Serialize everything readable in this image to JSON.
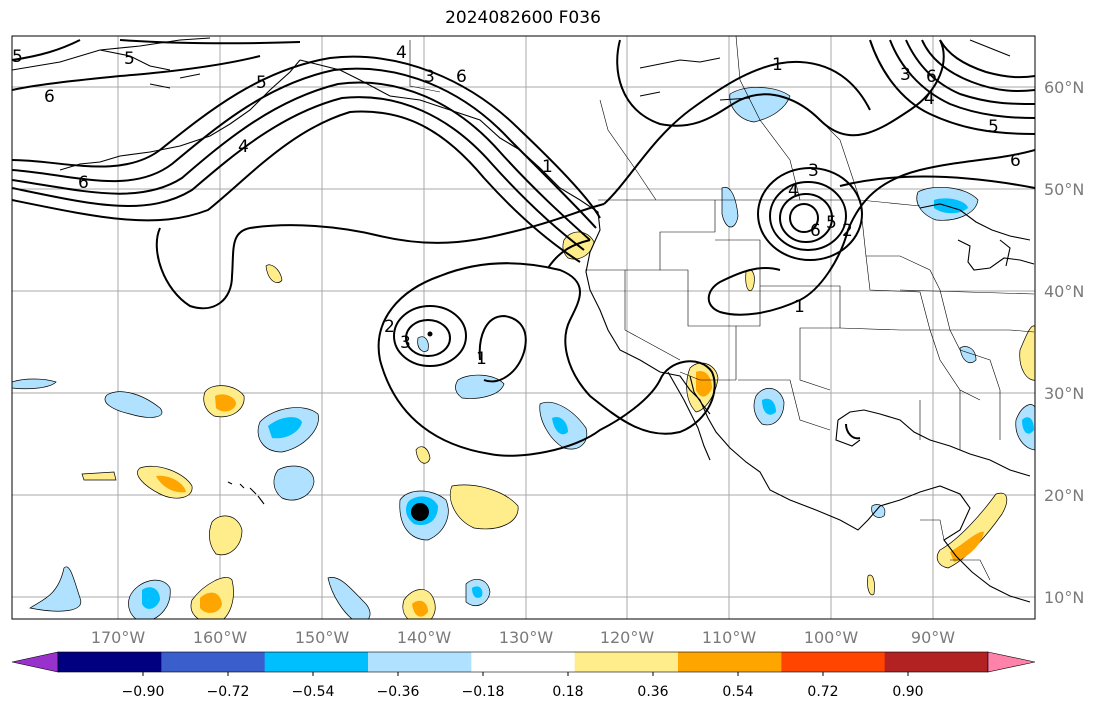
{
  "title": "2024082600 F036",
  "lon_labels": [
    "170°W",
    "160°W",
    "150°W",
    "140°W",
    "130°W",
    "120°W",
    "110°W",
    "100°W",
    "90°W"
  ],
  "lat_labels": [
    "60°N",
    "50°N",
    "40°N",
    "30°N",
    "20°N",
    "10°N"
  ],
  "contour_labels": [
    "1",
    "2",
    "3",
    "4",
    "5",
    "6"
  ],
  "colorbar": {
    "ticks": [
      "−0.90",
      "−0.72",
      "−0.54",
      "−0.36",
      "−0.18",
      "0.18",
      "0.36",
      "0.54",
      "0.72",
      "0.90"
    ],
    "colors": [
      "#9932cc",
      "#000080",
      "#3a5fcd",
      "#00bfff",
      "#b0e2ff",
      "#ffffff",
      "#ffec8b",
      "#ffa500",
      "#ff4500",
      "#b22222",
      "#ff82ab"
    ]
  }
}
